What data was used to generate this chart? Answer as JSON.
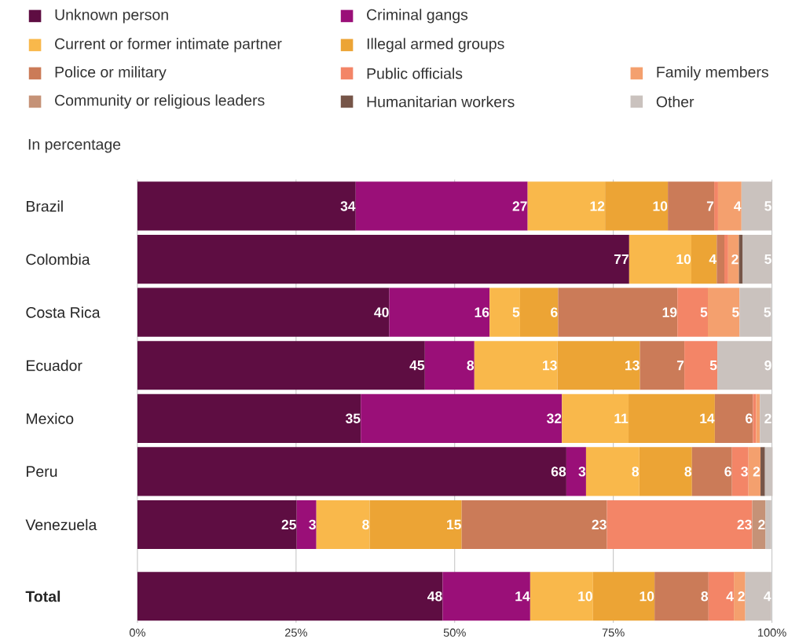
{
  "chart_data": {
    "type": "bar",
    "orientation": "horizontal",
    "stacked": true,
    "subtitle": "In percentage",
    "categories": [
      "Brazil",
      "Colombia",
      "Costa Rica",
      "Ecuador",
      "Mexico",
      "Peru",
      "Venezuela",
      "Total"
    ],
    "xlim": [
      0,
      100
    ],
    "xticks": [
      {
        "value": 0,
        "label": "0%"
      },
      {
        "value": 25,
        "label": "25%"
      },
      {
        "value": 50,
        "label": "50%"
      },
      {
        "value": 75,
        "label": "75%"
      },
      {
        "value": 100,
        "label": "100%"
      }
    ],
    "grid": "x",
    "legend": "top",
    "series": [
      {
        "name": "Unknown person",
        "color": "#5e0d42",
        "values": [
          34.4,
          77.5,
          39.7,
          45.3,
          35.2,
          67.6,
          25.1,
          48.1
        ],
        "value_labels": [
          "34",
          "77",
          "40",
          "45",
          "35",
          "68",
          "25",
          "48"
        ]
      },
      {
        "name": "Criminal gangs",
        "color": "#9a0f78",
        "values": [
          27.1,
          null,
          15.8,
          7.8,
          31.7,
          3.1,
          3.1,
          13.8
        ],
        "value_labels": [
          "27",
          null,
          "16",
          "8",
          "32",
          "3",
          "3",
          "14"
        ]
      },
      {
        "name": "Current or former intimate partner",
        "color": "#f9b84b",
        "values": [
          12.2,
          9.8,
          4.8,
          13.1,
          10.5,
          8.4,
          8.4,
          9.9
        ],
        "value_labels": [
          "12",
          "10",
          "5",
          "13",
          "11",
          "8",
          "8",
          "10"
        ]
      },
      {
        "name": "Illegal armed groups",
        "color": "#eca435",
        "values": [
          9.9,
          4.0,
          6.0,
          13.0,
          13.6,
          8.3,
          14.5,
          9.7
        ],
        "value_labels": [
          "10",
          "4",
          "6",
          "13",
          "14",
          "8",
          "15",
          "10"
        ]
      },
      {
        "name": "Police or military",
        "color": "#cb7b58",
        "values": [
          7.3,
          1.2,
          18.8,
          7.0,
          6.0,
          6.3,
          22.9,
          8.5
        ],
        "value_labels": [
          "7",
          null,
          "19",
          "7",
          "6",
          "6",
          "23",
          "8"
        ]
      },
      {
        "name": "Public officials",
        "color": "#f38567",
        "values": [
          0.6,
          0.6,
          4.8,
          5.2,
          0.5,
          2.6,
          22.9,
          4.0
        ],
        "value_labels": [
          null,
          null,
          "5",
          "5",
          null,
          "3",
          "23",
          "4"
        ]
      },
      {
        "name": "Family members",
        "color": "#f4a06e",
        "values": [
          3.7,
          1.7,
          5.0,
          null,
          0.6,
          1.9,
          null,
          1.8
        ],
        "value_labels": [
          "4",
          "2",
          "5",
          null,
          null,
          "2",
          null,
          "2"
        ]
      },
      {
        "name": "Community or religious leaders",
        "color": "#c59277",
        "values": [
          null,
          null,
          null,
          null,
          null,
          null,
          2.1,
          null
        ],
        "value_labels": [
          null,
          null,
          null,
          null,
          null,
          null,
          "2",
          null
        ]
      },
      {
        "name": "Humanitarian workers",
        "color": "#765548",
        "values": [
          null,
          0.6,
          null,
          null,
          null,
          0.7,
          null,
          null
        ]
      },
      {
        "name": "Other",
        "color": "#cac2be",
        "values": [
          4.8,
          4.6,
          5.0,
          8.6,
          1.9,
          1.2,
          0.9,
          4.1
        ],
        "value_labels": [
          "5",
          "5",
          "5",
          "9",
          "2",
          null,
          null,
          "4"
        ]
      }
    ]
  }
}
